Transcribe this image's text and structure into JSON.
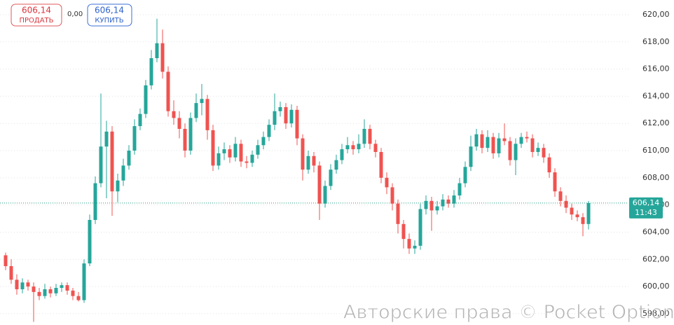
{
  "header": {
    "sell": {
      "price": "606,14",
      "label": "ПРОДАТЬ"
    },
    "spread": "0,00",
    "buy": {
      "price": "606,14",
      "label": "КУПИТЬ"
    }
  },
  "chart_data": {
    "type": "candlestick",
    "candles": [
      [
        602.3,
        602.5,
        601.2,
        601.5
      ],
      [
        601.5,
        602.0,
        600.2,
        600.5
      ],
      [
        600.5,
        600.9,
        599.4,
        599.8
      ],
      [
        599.8,
        600.6,
        599.5,
        600.3
      ],
      [
        600.3,
        600.5,
        599.7,
        600.0
      ],
      [
        600.0,
        600.3,
        597.4,
        599.6
      ],
      [
        599.6,
        599.9,
        599.0,
        599.3
      ],
      [
        599.3,
        600.2,
        599.1,
        599.8
      ],
      [
        599.8,
        600.0,
        599.2,
        599.5
      ],
      [
        599.5,
        600.2,
        599.3,
        599.9
      ],
      [
        599.9,
        600.3,
        599.6,
        600.1
      ],
      [
        600.1,
        600.3,
        599.4,
        599.7
      ],
      [
        599.7,
        599.9,
        599.0,
        599.3
      ],
      [
        599.3,
        599.6,
        598.9,
        599.0
      ],
      [
        599.0,
        602.0,
        598.8,
        601.7
      ],
      [
        601.7,
        605.3,
        601.5,
        604.9
      ],
      [
        604.9,
        608.1,
        604.6,
        607.6
      ],
      [
        607.6,
        614.2,
        607.3,
        610.3
      ],
      [
        610.3,
        612.2,
        606.5,
        611.4
      ],
      [
        611.4,
        611.8,
        605.2,
        607.0
      ],
      [
        607.0,
        608.3,
        606.2,
        607.8
      ],
      [
        607.8,
        609.4,
        607.4,
        608.9
      ],
      [
        608.9,
        610.4,
        608.6,
        610.0
      ],
      [
        610.0,
        612.3,
        609.7,
        611.8
      ],
      [
        611.8,
        613.1,
        611.5,
        612.7
      ],
      [
        612.7,
        615.2,
        612.4,
        614.8
      ],
      [
        614.8,
        617.4,
        614.5,
        616.8
      ],
      [
        616.8,
        619.7,
        616.5,
        617.9
      ],
      [
        617.9,
        618.9,
        615.3,
        615.8
      ],
      [
        615.8,
        616.2,
        612.5,
        612.9
      ],
      [
        612.9,
        613.7,
        611.9,
        612.4
      ],
      [
        612.4,
        612.9,
        610.9,
        611.6
      ],
      [
        611.6,
        612.0,
        609.5,
        610.0
      ],
      [
        610.0,
        612.8,
        609.7,
        612.4
      ],
      [
        612.4,
        614.2,
        612.1,
        613.5
      ],
      [
        613.5,
        614.9,
        612.6,
        613.8
      ],
      [
        613.8,
        614.1,
        610.8,
        611.5
      ],
      [
        611.5,
        611.9,
        608.5,
        608.9
      ],
      [
        608.9,
        610.3,
        608.6,
        609.8
      ],
      [
        609.8,
        610.6,
        609.3,
        610.1
      ],
      [
        610.1,
        610.4,
        609.1,
        609.5
      ],
      [
        609.5,
        611.0,
        609.2,
        610.5
      ],
      [
        610.5,
        610.8,
        608.8,
        609.2
      ],
      [
        609.2,
        609.6,
        608.7,
        609.1
      ],
      [
        609.1,
        610.0,
        608.8,
        609.7
      ],
      [
        609.7,
        610.8,
        609.4,
        610.4
      ],
      [
        610.4,
        611.4,
        610.1,
        611.0
      ],
      [
        611.0,
        612.3,
        610.7,
        611.9
      ],
      [
        611.9,
        614.2,
        611.5,
        612.9
      ],
      [
        612.9,
        613.6,
        612.5,
        613.2
      ],
      [
        613.2,
        613.5,
        611.6,
        612.0
      ],
      [
        612.0,
        613.4,
        611.7,
        613.0
      ],
      [
        613.0,
        613.3,
        610.4,
        610.9
      ],
      [
        610.9,
        611.2,
        607.8,
        608.6
      ],
      [
        608.6,
        610.0,
        608.3,
        609.6
      ],
      [
        609.6,
        609.9,
        608.4,
        608.9
      ],
      [
        608.9,
        609.2,
        604.9,
        606.1
      ],
      [
        606.1,
        607.8,
        605.8,
        607.4
      ],
      [
        607.4,
        609.0,
        607.1,
        608.6
      ],
      [
        608.6,
        609.7,
        608.3,
        609.3
      ],
      [
        609.3,
        610.5,
        609.0,
        610.1
      ],
      [
        610.1,
        611.0,
        609.8,
        610.4
      ],
      [
        610.4,
        610.7,
        609.7,
        610.1
      ],
      [
        610.1,
        611.2,
        609.8,
        610.5
      ],
      [
        610.5,
        612.3,
        610.2,
        611.6
      ],
      [
        611.6,
        611.9,
        610.1,
        610.5
      ],
      [
        610.5,
        610.8,
        609.5,
        609.9
      ],
      [
        609.9,
        610.2,
        607.6,
        608.0
      ],
      [
        608.0,
        608.4,
        606.8,
        607.3
      ],
      [
        607.3,
        607.6,
        605.6,
        606.1
      ],
      [
        606.1,
        606.4,
        603.9,
        604.6
      ],
      [
        604.6,
        604.9,
        602.8,
        603.5
      ],
      [
        603.5,
        603.9,
        602.4,
        602.8
      ],
      [
        602.8,
        603.4,
        602.4,
        603.0
      ],
      [
        603.0,
        606.1,
        602.7,
        605.7
      ],
      [
        605.7,
        606.7,
        605.3,
        606.3
      ],
      [
        606.3,
        606.6,
        604.1,
        605.6
      ],
      [
        605.6,
        606.3,
        605.3,
        605.9
      ],
      [
        605.9,
        606.8,
        605.6,
        606.4
      ],
      [
        606.4,
        606.7,
        605.8,
        606.1
      ],
      [
        606.1,
        607.1,
        605.8,
        606.7
      ],
      [
        606.7,
        608.0,
        606.4,
        607.6
      ],
      [
        607.6,
        609.2,
        607.3,
        608.8
      ],
      [
        608.8,
        611.1,
        608.5,
        610.3
      ],
      [
        610.3,
        611.6,
        610.0,
        611.2
      ],
      [
        611.2,
        611.5,
        609.8,
        610.2
      ],
      [
        610.2,
        611.5,
        609.9,
        611.0
      ],
      [
        611.0,
        611.3,
        609.4,
        609.8
      ],
      [
        609.8,
        611.3,
        609.5,
        610.9
      ],
      [
        610.9,
        612.0,
        610.4,
        610.7
      ],
      [
        610.7,
        611.0,
        608.9,
        609.3
      ],
      [
        609.3,
        610.9,
        608.2,
        610.5
      ],
      [
        610.5,
        611.3,
        610.2,
        611.0
      ],
      [
        611.0,
        611.4,
        610.6,
        610.9
      ],
      [
        610.9,
        611.2,
        609.5,
        609.9
      ],
      [
        609.9,
        610.6,
        609.6,
        610.2
      ],
      [
        610.2,
        610.5,
        609.1,
        609.5
      ],
      [
        609.5,
        609.8,
        608.0,
        608.4
      ],
      [
        608.4,
        608.7,
        606.6,
        607.0
      ],
      [
        607.0,
        607.3,
        605.9,
        606.3
      ],
      [
        606.3,
        606.7,
        605.4,
        605.8
      ],
      [
        605.8,
        606.1,
        604.9,
        605.3
      ],
      [
        605.3,
        605.6,
        604.8,
        605.1
      ],
      [
        605.1,
        605.4,
        603.7,
        604.6
      ],
      [
        604.6,
        606.3,
        604.2,
        606.14
      ]
    ],
    "ylim": [
      597.17,
      621.08
    ],
    "yticks": [
      {
        "value": 598,
        "label": "598,00"
      },
      {
        "value": 600,
        "label": "600,00"
      },
      {
        "value": 602,
        "label": "602,00"
      },
      {
        "value": 604,
        "label": "604,00"
      },
      {
        "value": 606,
        "label": "606,00"
      },
      {
        "value": 608,
        "label": "608,00"
      },
      {
        "value": 610,
        "label": "610,00"
      },
      {
        "value": 612,
        "label": "612,00"
      },
      {
        "value": 614,
        "label": "614,00"
      },
      {
        "value": 616,
        "label": "616,00"
      },
      {
        "value": 618,
        "label": "618,00"
      },
      {
        "value": 620,
        "label": "620,00"
      }
    ],
    "grid": true,
    "up_color": "#26a69a",
    "down_color": "#ef5350",
    "current_price": {
      "value": 606.14,
      "label": "606,14"
    },
    "current_time": "11:43"
  },
  "watermark": "Авторские права © Pocket Option"
}
